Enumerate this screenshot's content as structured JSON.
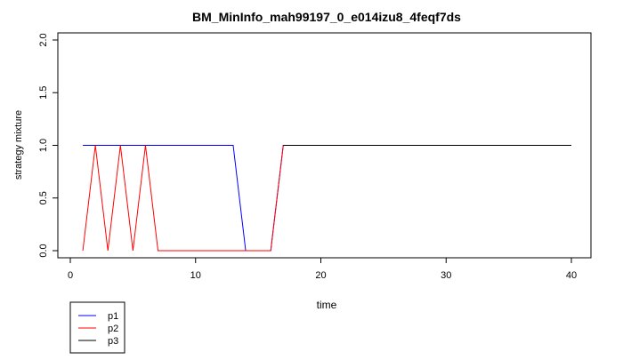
{
  "chart_data": {
    "type": "line",
    "title": "BM_MinInfo_mah99197_0_e014izu8_4feqf7ds",
    "xlabel": "time",
    "ylabel": "strategy mixture",
    "xlim": [
      0,
      40
    ],
    "ylim": [
      0,
      2
    ],
    "x_ticks": [
      0,
      10,
      20,
      30,
      40
    ],
    "x_tick_labels": [
      "0",
      "10",
      "20",
      "30",
      "40"
    ],
    "y_ticks": [
      0,
      0.5,
      1,
      1.5,
      2
    ],
    "y_tick_labels": [
      "0.0",
      "0.5",
      "1.0",
      "1.5",
      "2.0"
    ],
    "grid": false,
    "legend_position": "bottom-left, below the plot area",
    "x": [
      1,
      2,
      3,
      4,
      5,
      6,
      7,
      8,
      9,
      10,
      11,
      12,
      13,
      14,
      15,
      16,
      17,
      18,
      19,
      20,
      21,
      22,
      23,
      24,
      25,
      26,
      27,
      28,
      29,
      30,
      31,
      32,
      33,
      34,
      35,
      36,
      37,
      38,
      39,
      40
    ],
    "series": [
      {
        "name": "p1",
        "color": "#0000ff",
        "values": [
          1,
          1,
          1,
          1,
          1,
          1,
          1,
          1,
          1,
          1,
          1,
          1,
          1,
          0,
          0,
          0,
          1,
          1,
          1,
          1,
          1,
          1,
          1,
          1,
          1,
          1,
          1,
          1,
          1,
          1,
          1,
          1,
          1,
          1,
          1,
          1,
          1,
          1,
          1,
          1
        ]
      },
      {
        "name": "p2",
        "color": "#ff0000",
        "values": [
          0,
          1,
          0,
          1,
          0,
          1,
          0,
          0,
          0,
          0,
          0,
          0,
          0,
          0,
          0,
          0,
          1,
          1,
          1,
          1,
          1,
          1,
          1,
          1,
          1,
          1,
          1,
          1,
          1,
          1,
          1,
          1,
          1,
          1,
          1,
          1,
          1,
          1,
          1,
          1
        ]
      },
      {
        "name": "p3",
        "color": "#000000",
        "values": [
          null,
          null,
          null,
          null,
          null,
          null,
          null,
          null,
          null,
          null,
          null,
          null,
          null,
          null,
          null,
          null,
          1,
          1,
          1,
          1,
          1,
          1,
          1,
          1,
          1,
          1,
          1,
          1,
          1,
          1,
          1,
          1,
          1,
          1,
          1,
          1,
          1,
          1,
          1,
          1
        ]
      }
    ]
  }
}
